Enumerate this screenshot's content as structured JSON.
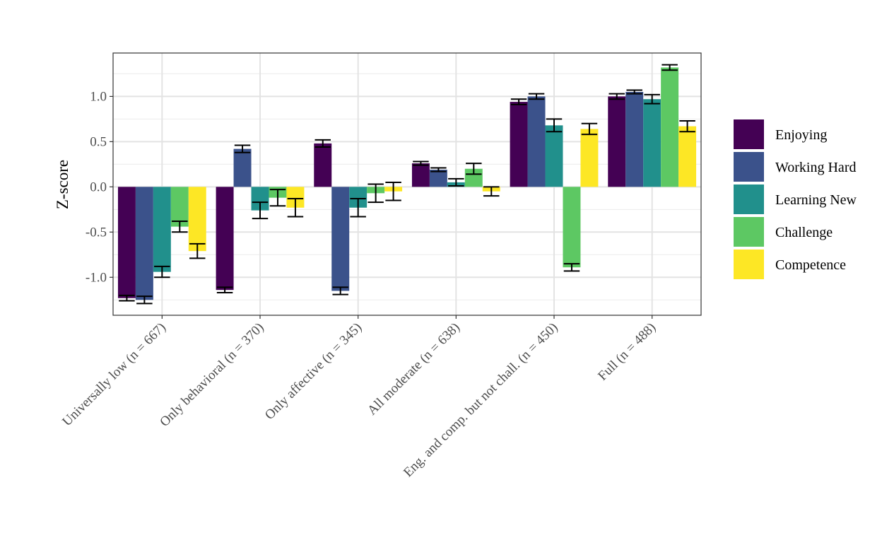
{
  "chart_data": {
    "type": "bar",
    "title": "",
    "xlabel": "",
    "ylabel": "Z-score",
    "ylim": [
      -1.42,
      1.48
    ],
    "yticks": [
      -1.0,
      -0.5,
      0.0,
      0.5,
      1.0
    ],
    "ytick_labels": [
      "-1.0",
      "-0.5",
      "0.0",
      "0.5",
      "1.0"
    ],
    "grid": true,
    "legend_position": "right",
    "categories": [
      "Universally low (n = 667)",
      "Only behavioral (n = 370)",
      "Only affective (n = 345)",
      "All moderate (n = 638)",
      "Eng. and comp. but not chall. (n = 450)",
      "Full (n = 488)"
    ],
    "series": [
      {
        "name": "Enjoying",
        "color": "#440154",
        "values": [
          -1.23,
          -1.14,
          0.48,
          0.26,
          0.94,
          1.0
        ],
        "errors": [
          0.03,
          0.03,
          0.04,
          0.02,
          0.03,
          0.03
        ]
      },
      {
        "name": "Working Hard",
        "color": "#3B528B",
        "values": [
          -1.25,
          0.42,
          -1.15,
          0.19,
          1.0,
          1.05
        ],
        "errors": [
          0.04,
          0.04,
          0.04,
          0.02,
          0.03,
          0.02
        ]
      },
      {
        "name": "Learning New",
        "color": "#21908C",
        "values": [
          -0.94,
          -0.26,
          -0.23,
          0.05,
          0.68,
          0.97
        ],
        "errors": [
          0.06,
          0.09,
          0.1,
          0.04,
          0.07,
          0.05
        ]
      },
      {
        "name": "Challenge",
        "color": "#5DC863",
        "values": [
          -0.44,
          -0.12,
          -0.07,
          0.2,
          -0.89,
          1.32
        ],
        "errors": [
          0.06,
          0.09,
          0.1,
          0.06,
          0.04,
          0.03
        ]
      },
      {
        "name": "Competence",
        "color": "#FDE725",
        "values": [
          -0.71,
          -0.23,
          -0.05,
          -0.05,
          0.64,
          0.67
        ],
        "errors": [
          0.08,
          0.1,
          0.1,
          0.05,
          0.06,
          0.06
        ]
      }
    ]
  }
}
